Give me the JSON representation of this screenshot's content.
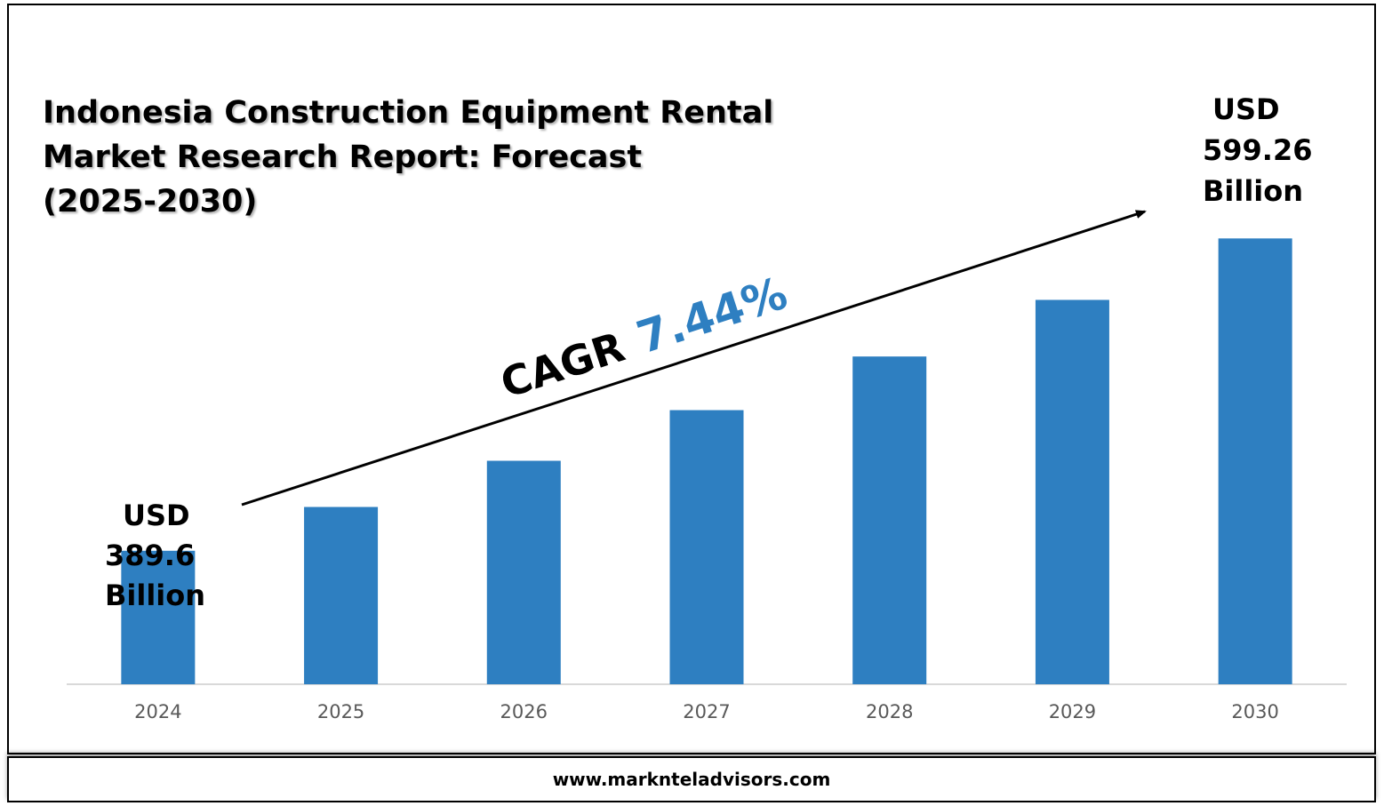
{
  "footer": {
    "website": "www.marknteladvisors.com"
  },
  "colors": {
    "bar": "#2e7fc1",
    "cagr_value": "#2e7fc1",
    "axis": "#d9d9d9"
  },
  "chart_data": {
    "type": "bar",
    "title_lines": [
      "Indonesia Construction Equipment Rental",
      "Market Research Report: Forecast",
      "(2025-2030)"
    ],
    "categories": [
      "2024",
      "2025",
      "2026",
      "2027",
      "2028",
      "2029",
      "2030"
    ],
    "values": [
      389.6,
      419.0,
      450.0,
      484.0,
      520.0,
      558.0,
      599.26
    ],
    "units": "USD Billion",
    "ylim": [
      300,
      640
    ],
    "annotations": {
      "start": [
        "USD",
        "389.6",
        "Billion"
      ],
      "end": [
        "USD",
        "599.26",
        "Billion"
      ],
      "cagr_label": "CAGR",
      "cagr_value": "7.44%"
    }
  }
}
